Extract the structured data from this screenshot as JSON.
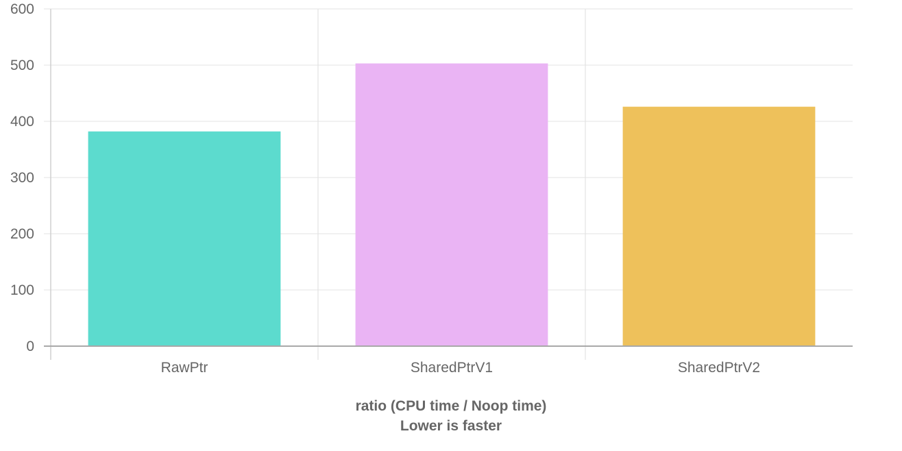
{
  "chart_data": {
    "type": "bar",
    "categories": [
      "RawPtr",
      "SharedPtrV1",
      "SharedPtrV2"
    ],
    "values": [
      382,
      503,
      426
    ],
    "colors": [
      "#5cdbce",
      "#eab4f4",
      "#eec15b"
    ],
    "ylim": [
      0,
      600
    ],
    "yticks": [
      0,
      100,
      200,
      300,
      400,
      500,
      600
    ],
    "grid": true,
    "legend": "none",
    "xlabel": "ratio (CPU time / Noop time)",
    "subtitle": "Lower is faster"
  }
}
